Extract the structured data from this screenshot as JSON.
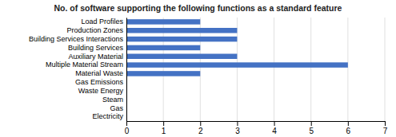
{
  "chart_data": {
    "type": "bar",
    "orientation": "horizontal",
    "title": "No. of software supporting the following functions as a standard feature",
    "categories": [
      "Electricity",
      "Gas",
      "Steam",
      "Waste Energy",
      "Gas Emissions",
      "Material Waste",
      "Multiple Material Stream",
      "Auxiliary Material",
      "Building Services",
      "Building Services Interactions",
      "Production Zones",
      "Load Profiles"
    ],
    "values": [
      0,
      0,
      0,
      0,
      0,
      2,
      6,
      3,
      2,
      3,
      3,
      2
    ],
    "color": "#4472C4",
    "xlim": [
      0,
      7
    ],
    "xticks": [
      0,
      1,
      2,
      3,
      4,
      5,
      6,
      7
    ],
    "grid": true
  }
}
